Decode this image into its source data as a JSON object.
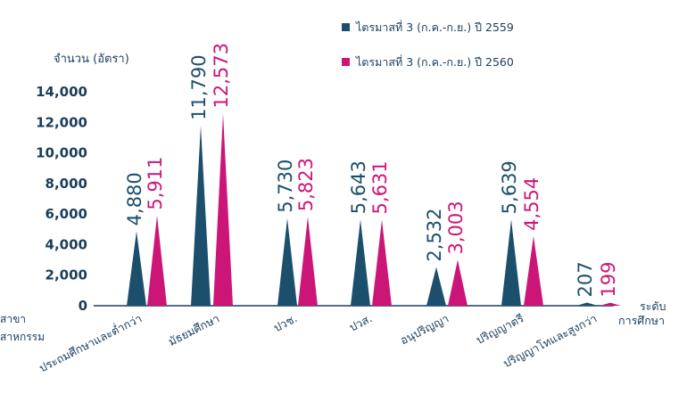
{
  "chart_data": {
    "type": "bar",
    "categories": [
      "ประถมศึกษาและต่ำกว่า",
      "มัธยมศึกษา",
      "ปวช.",
      "ปวส.",
      "อนุปริญญา",
      "ปริญญาตรี",
      "ปริญญาโทและสูงกว่า"
    ],
    "series": [
      {
        "name": "ไตรมาสที่ 3 (ก.ค.-ก.ย.) ปี 2559",
        "values": [
          4880,
          11790,
          5730,
          5643,
          2532,
          5639,
          207
        ]
      },
      {
        "name": "ไตรมาสที่ 3 (ก.ค.-ก.ย.) ปี 2560",
        "values": [
          5911,
          12573,
          5823,
          5631,
          3003,
          4554,
          199
        ]
      }
    ],
    "value_labels": [
      [
        "4,880",
        "11,790",
        "5,730",
        "5,643",
        "2,532",
        "5,639",
        "207"
      ],
      [
        "5,911",
        "12,573",
        "5,823",
        "5,631",
        "3,003",
        "4,554",
        "199"
      ]
    ],
    "ylabel": "จำนวน (อัตรา)",
    "xlabel": [
      "ระดับ",
      "การศึกษา"
    ],
    "ylim": [
      0,
      14000
    ],
    "yticks": [
      0,
      2000,
      4000,
      6000,
      8000,
      10000,
      12000,
      14000
    ],
    "ytick_labels": [
      "0",
      "2,000",
      "4,000",
      "6,000",
      "8,000",
      "10,000",
      "12,000",
      "14,000"
    ],
    "left_cut_text": [
      "สาขา",
      "สาหกรรม"
    ],
    "colors": {
      "series1": "#1c4f6c",
      "series2": "#cc1677",
      "text": "#1a3e5c"
    },
    "legend_position": "top-right",
    "grid": false
  }
}
